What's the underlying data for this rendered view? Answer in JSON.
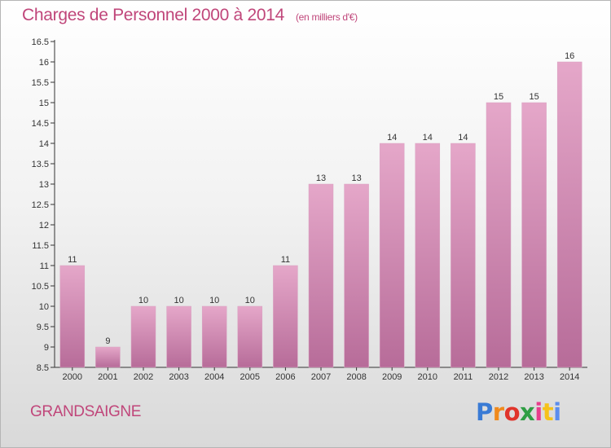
{
  "title": "Charges de Personnel 2000 à 2014",
  "subtitle": "(en milliers d'€)",
  "commune": "GRANDSAIGNE",
  "logo": {
    "text": "Proxiti",
    "letter_colors": [
      "#3a7bd5",
      "#f08a1c",
      "#e0342b",
      "#2f9e44",
      "#e83e8c",
      "#f6c21a",
      "#5b8dee"
    ]
  },
  "colors": {
    "title": "#c0467a",
    "bar_top": "#e5a7c9",
    "bar_bottom": "#b76c99",
    "axis": "#333333",
    "grid": "#cccccc"
  },
  "chart_data": {
    "type": "bar",
    "categories": [
      "2000",
      "2001",
      "2002",
      "2003",
      "2004",
      "2005",
      "2006",
      "2007",
      "2008",
      "2009",
      "2010",
      "2011",
      "2012",
      "2013",
      "2014"
    ],
    "values": [
      11,
      9,
      10,
      10,
      10,
      10,
      11,
      13,
      13,
      14,
      14,
      14,
      15,
      15,
      16
    ],
    "value_labels": [
      "11",
      "9",
      "10",
      "10",
      "10",
      "10",
      "11",
      "13",
      "13",
      "14",
      "14",
      "14",
      "15",
      "15",
      "16"
    ],
    "ylim": [
      8.5,
      16.5
    ],
    "yticks": [
      8.5,
      9,
      9.5,
      10,
      10.5,
      11,
      11.5,
      12,
      12.5,
      13,
      13.5,
      14,
      14.5,
      15,
      15.5,
      16,
      16.5
    ],
    "ytick_labels": [
      "8.5",
      "9",
      "9.5",
      "10",
      "10.5",
      "11",
      "11.5",
      "12",
      "12.5",
      "13",
      "13.5",
      "14",
      "14.5",
      "15",
      "15.5",
      "16",
      "16.5"
    ],
    "grid": false,
    "xlabel": "",
    "ylabel": ""
  }
}
